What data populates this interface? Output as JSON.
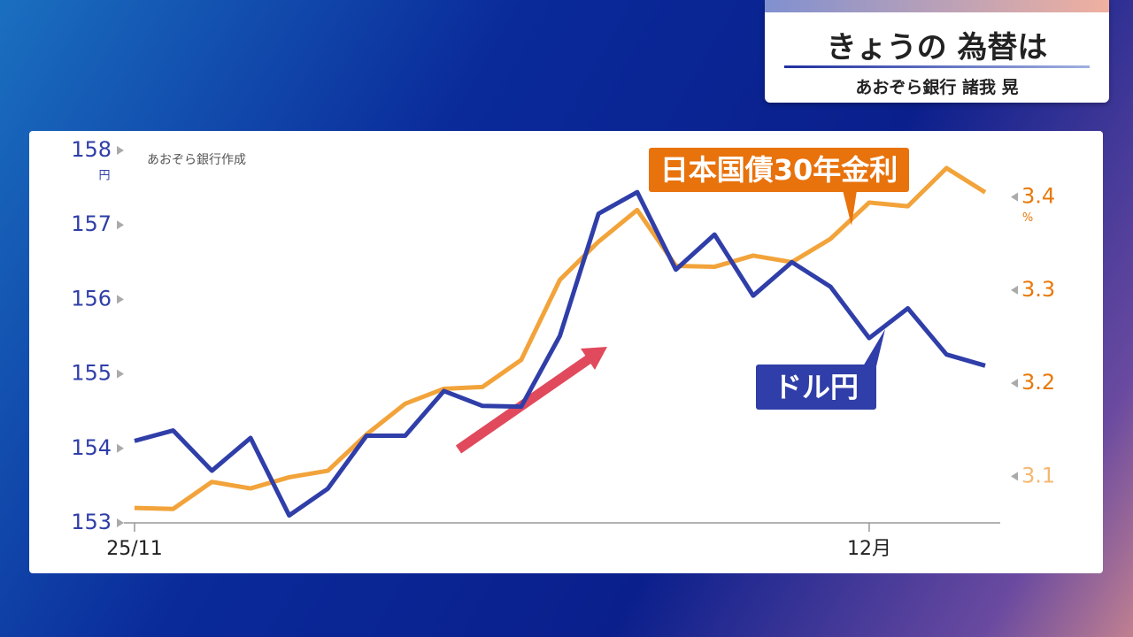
{
  "header": {
    "title": "きょうの 為替は",
    "subtitle": "あおぞら銀行 諸我 晃"
  },
  "chart_data": {
    "type": "line",
    "source": "あおぞら銀行作成",
    "y_unit": "円",
    "y2_unit": "%",
    "categories": [
      "25/11",
      null,
      null,
      null,
      null,
      null,
      null,
      null,
      null,
      null,
      null,
      null,
      null,
      null,
      null,
      null,
      null,
      null,
      null,
      "12月",
      null,
      null,
      null
    ],
    "series": [
      {
        "name": "ドル円",
        "color": "#2f3ea8",
        "values": [
          154.1,
          154.24,
          153.7,
          154.14,
          153.1,
          153.46,
          154.17,
          154.17,
          154.77,
          154.57,
          154.56,
          155.51,
          157.15,
          157.44,
          156.4,
          156.87,
          156.05,
          156.5,
          156.17,
          155.48,
          155.88,
          155.26,
          155.11
        ]
      },
      {
        "name": "日本国債30年金利",
        "color": "#f2a33a",
        "axis": "y2",
        "values": [
          3.066,
          3.065,
          3.094,
          3.087,
          3.099,
          3.106,
          3.145,
          3.178,
          3.194,
          3.196,
          3.225,
          3.311,
          3.352,
          3.386,
          3.326,
          3.325,
          3.337,
          3.33,
          3.355,
          3.394,
          3.39,
          3.431,
          3.405
        ]
      }
    ],
    "ylim": [
      153,
      158
    ],
    "yticks": [
      153,
      154,
      155,
      156,
      157,
      158
    ],
    "y2lim": [
      3.05,
      3.45
    ],
    "y2ticks": [
      3.1,
      3.2,
      3.3,
      3.4
    ]
  }
}
